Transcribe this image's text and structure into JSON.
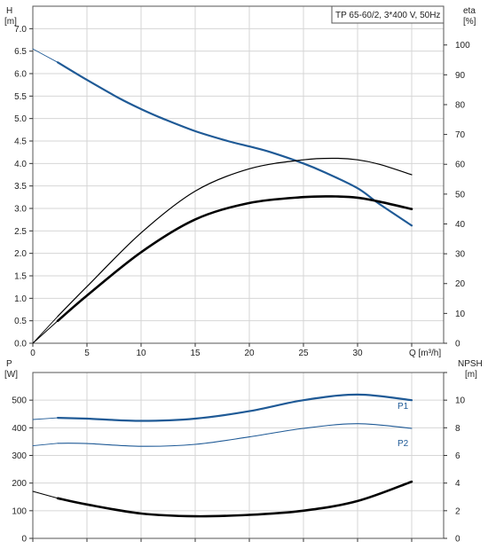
{
  "chart_data": [
    {
      "type": "line",
      "panel": "top",
      "title": "TP 65-60/2, 3*400 V, 50Hz",
      "xlabel": "Q [m³/h]",
      "xticks": [
        "0",
        "5",
        "10",
        "15",
        "20",
        "25",
        "30",
        "Q [m³/h]"
      ],
      "xlim": [
        0,
        35
      ],
      "left_axis": {
        "label_line1": "H",
        "label_line2": "[m]",
        "ylim": [
          0,
          7.5
        ],
        "ticks": [
          "0.0",
          "0.5",
          "1.0",
          "1.5",
          "2.0",
          "2.5",
          "3.0",
          "3.5",
          "4.0",
          "4.5",
          "5.0",
          "5.5",
          "6.0",
          "6.5",
          "7.0"
        ]
      },
      "right_axis": {
        "label_line1": "eta",
        "label_line2": "[%]",
        "ylim": [
          0,
          113
        ],
        "ticks": [
          "0",
          "10",
          "20",
          "30",
          "40",
          "50",
          "60",
          "70",
          "80",
          "90",
          "100"
        ]
      },
      "series": [
        {
          "axis": "left",
          "color": "#1f5a96",
          "width": 2.2,
          "x": [
            0,
            2.3,
            5,
            8,
            10,
            12,
            15,
            18,
            20,
            22,
            25,
            27,
            30,
            32,
            35
          ],
          "y": [
            6.55,
            6.25,
            5.86,
            5.45,
            5.21,
            5.0,
            4.72,
            4.5,
            4.38,
            4.25,
            4.0,
            3.8,
            3.45,
            3.1,
            2.62
          ],
          "dashed_until": 2.3
        },
        {
          "axis": "right",
          "color": "#000000",
          "width": 1.2,
          "x": [
            0,
            2.3,
            5,
            10,
            15,
            20,
            25,
            28,
            30,
            32,
            35
          ],
          "y": [
            0,
            9,
            19,
            37,
            51,
            58.5,
            61.5,
            62,
            61.5,
            60,
            56.5
          ],
          "dashed_until": 2.3
        },
        {
          "axis": "right",
          "color": "#000000",
          "width": 2.6,
          "x": [
            0,
            2.3,
            5,
            10,
            15,
            20,
            25,
            28,
            30,
            32,
            35
          ],
          "y": [
            0,
            7.5,
            16,
            30.5,
            41.5,
            47,
            49,
            49.2,
            48.8,
            47.5,
            45
          ],
          "dashed_until": 2.3
        }
      ]
    },
    {
      "type": "line",
      "panel": "bottom",
      "xlim": [
        0,
        35
      ],
      "left_axis": {
        "label_line1": "P",
        "label_line2": "[W]",
        "ylim": [
          0,
          600
        ],
        "ticks": [
          "0",
          "100",
          "200",
          "300",
          "400",
          "500"
        ]
      },
      "right_axis": {
        "label_line1": "NPSH",
        "label_line2": "[m]",
        "ylim": [
          0,
          12
        ],
        "ticks": [
          "0",
          "2",
          "4",
          "6",
          "8",
          "10"
        ]
      },
      "series": [
        {
          "name": "P1",
          "axis": "left",
          "color": "#1f5a96",
          "width": 2.2,
          "x": [
            0,
            2.3,
            5,
            10,
            15,
            20,
            25,
            30,
            35
          ],
          "y": [
            430,
            436,
            433,
            425,
            433,
            460,
            500,
            520,
            500
          ],
          "dashed_until": 2.3
        },
        {
          "name": "P2",
          "axis": "left",
          "color": "#1f5a96",
          "width": 1.1,
          "x": [
            0,
            2.3,
            5,
            10,
            15,
            20,
            25,
            30,
            35
          ],
          "y": [
            335,
            344,
            343,
            333,
            340,
            367,
            398,
            415,
            398
          ],
          "dashed_until": 2.3
        },
        {
          "axis": "right",
          "color": "#000000",
          "width": 2.6,
          "x": [
            0,
            2.3,
            5,
            10,
            15,
            20,
            25,
            30,
            35
          ],
          "y": [
            3.4,
            2.9,
            2.45,
            1.8,
            1.6,
            1.7,
            2.0,
            2.7,
            4.1
          ],
          "dashed_until": 2.3
        }
      ]
    }
  ]
}
